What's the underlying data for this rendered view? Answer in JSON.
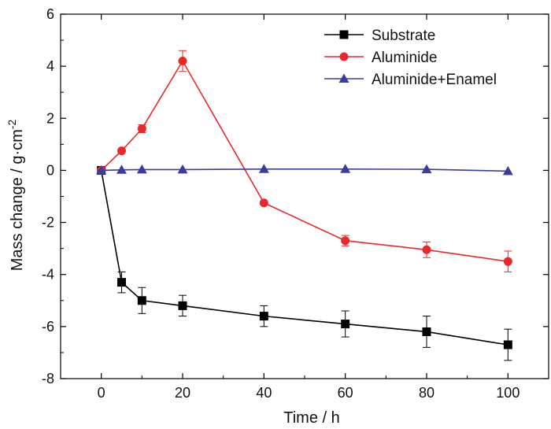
{
  "chart_data": {
    "type": "line",
    "title": "",
    "xlabel": "Time / h",
    "ylabel_main": "Mass change / g·cm",
    "ylabel_sup": "-2",
    "xlim": [
      -10,
      110
    ],
    "ylim": [
      -8,
      6
    ],
    "x_ticks": [
      0,
      20,
      40,
      60,
      80,
      100
    ],
    "y_ticks": [
      -8,
      -6,
      -4,
      -2,
      0,
      2,
      4,
      6
    ],
    "x_tick_labels": [
      "0",
      "20",
      "40",
      "60",
      "80",
      "100"
    ],
    "y_tick_labels": [
      "-8",
      "-6",
      "-4",
      "-2",
      "0",
      "2",
      "4",
      "6"
    ],
    "grid": false,
    "legend_position": "top-right",
    "series": [
      {
        "name": "Substrate",
        "color": "#000000",
        "marker": "square",
        "x": [
          0,
          5,
          10,
          20,
          40,
          60,
          80,
          100
        ],
        "y": [
          0,
          -4.3,
          -5.0,
          -5.2,
          -5.6,
          -5.9,
          -6.2,
          -6.7
        ],
        "err": [
          0,
          0.4,
          0.5,
          0.4,
          0.4,
          0.5,
          0.6,
          0.6
        ]
      },
      {
        "name": "Aluminide",
        "color": "#e8292b",
        "marker": "circle",
        "x": [
          0,
          5,
          10,
          20,
          40,
          60,
          80,
          100
        ],
        "y": [
          0,
          0.75,
          1.6,
          4.2,
          -1.25,
          -2.7,
          -3.05,
          -3.5
        ],
        "err": [
          0,
          0.05,
          0.15,
          0.4,
          0.05,
          0.2,
          0.3,
          0.4
        ]
      },
      {
        "name": "Aluminide+Enamel",
        "color": "#3b3d9c",
        "marker": "triangle",
        "x": [
          0,
          5,
          10,
          20,
          40,
          60,
          80,
          100
        ],
        "y": [
          0,
          0.02,
          0.03,
          0.03,
          0.05,
          0.05,
          0.04,
          -0.03
        ],
        "err": [
          0,
          0,
          0,
          0,
          0,
          0,
          0,
          0
        ]
      }
    ]
  }
}
